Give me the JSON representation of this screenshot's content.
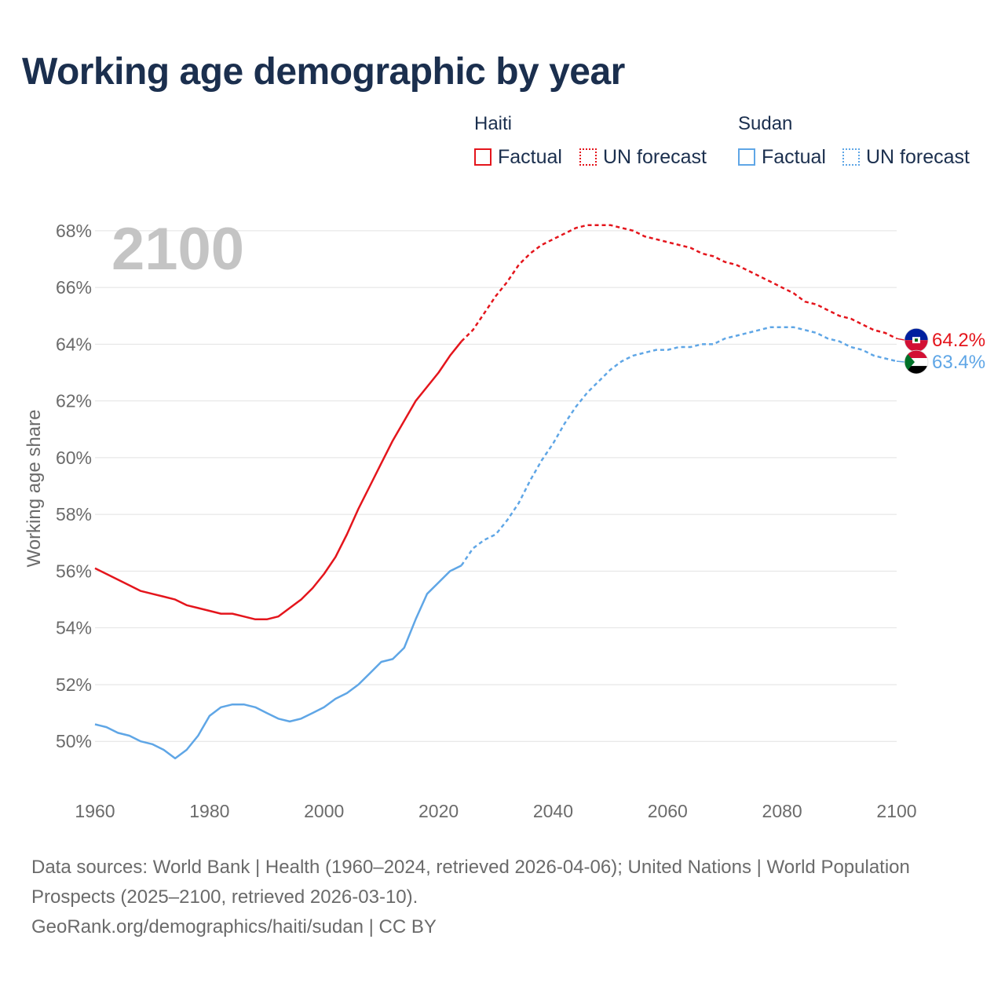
{
  "colors": {
    "haiti": "#e4151c",
    "sudan": "#5fa6e6",
    "title": "#1b2f4e",
    "axis_text": "#6b6b6b",
    "grid": "#e2e2e2",
    "year_watermark": "#c4c4c4"
  },
  "legend": {
    "haiti": {
      "title": "Haiti",
      "factual": "Factual",
      "forecast": "UN forecast"
    },
    "sudan": {
      "title": "Sudan",
      "factual": "Factual",
      "forecast": "UN forecast"
    }
  },
  "footer": {
    "sources": "Data sources: World Bank | Health (1960–2024, retrieved 2026-04-06); United Nations | World Population Prospects (2025–2100, retrieved 2026-03-10).",
    "credit": "GeoRank.org/demographics/haiti/sudan | CC BY"
  },
  "chart_data": {
    "type": "line",
    "title": "Working age demographic by year",
    "watermark_year": "2100",
    "xlabel": "",
    "ylabel": "Working age share",
    "xlim": [
      1960,
      2100
    ],
    "ylim": [
      48.4,
      68.8
    ],
    "x_ticks": [
      {
        "value": 1960,
        "label": "1960"
      },
      {
        "value": 1980,
        "label": "1980"
      },
      {
        "value": 2000,
        "label": "2000"
      },
      {
        "value": 2020,
        "label": "2020"
      },
      {
        "value": 2040,
        "label": "2040"
      },
      {
        "value": 2060,
        "label": "2060"
      },
      {
        "value": 2080,
        "label": "2080"
      },
      {
        "value": 2100,
        "label": "2100"
      }
    ],
    "y_ticks": [
      {
        "value": 50,
        "label": "50%"
      },
      {
        "value": 52,
        "label": "52%"
      },
      {
        "value": 54,
        "label": "54%"
      },
      {
        "value": 56,
        "label": "56%"
      },
      {
        "value": 58,
        "label": "58%"
      },
      {
        "value": 60,
        "label": "60%"
      },
      {
        "value": 62,
        "label": "62%"
      },
      {
        "value": 64,
        "label": "64%"
      },
      {
        "value": 66,
        "label": "66%"
      },
      {
        "value": 68,
        "label": "68%"
      }
    ],
    "grid": true,
    "legend_position": "top-right",
    "series": [
      {
        "name": "Haiti",
        "color_key": "haiti",
        "flag": "haiti",
        "end_label": "64.2%",
        "factual": {
          "x": [
            1960,
            1962,
            1964,
            1966,
            1968,
            1970,
            1972,
            1974,
            1976,
            1978,
            1980,
            1982,
            1984,
            1986,
            1988,
            1990,
            1992,
            1994,
            1996,
            1998,
            2000,
            2002,
            2004,
            2006,
            2008,
            2010,
            2012,
            2014,
            2016,
            2018,
            2020,
            2022,
            2024
          ],
          "y": [
            56.1,
            55.9,
            55.7,
            55.5,
            55.3,
            55.2,
            55.1,
            55.0,
            54.8,
            54.7,
            54.6,
            54.5,
            54.5,
            54.4,
            54.3,
            54.3,
            54.4,
            54.7,
            55.0,
            55.4,
            55.9,
            56.5,
            57.3,
            58.2,
            59.0,
            59.8,
            60.6,
            61.3,
            62.0,
            62.5,
            63.0,
            63.6,
            64.1
          ]
        },
        "forecast": {
          "x": [
            2024,
            2026,
            2028,
            2030,
            2032,
            2034,
            2036,
            2038,
            2040,
            2042,
            2044,
            2046,
            2048,
            2050,
            2052,
            2054,
            2056,
            2058,
            2060,
            2062,
            2064,
            2066,
            2068,
            2070,
            2072,
            2074,
            2076,
            2078,
            2080,
            2082,
            2084,
            2086,
            2088,
            2090,
            2092,
            2094,
            2096,
            2098,
            2100
          ],
          "y": [
            64.1,
            64.5,
            65.1,
            65.7,
            66.2,
            66.8,
            67.2,
            67.5,
            67.7,
            67.9,
            68.1,
            68.2,
            68.2,
            68.2,
            68.1,
            68.0,
            67.8,
            67.7,
            67.6,
            67.5,
            67.4,
            67.2,
            67.1,
            66.9,
            66.8,
            66.6,
            66.4,
            66.2,
            66.0,
            65.8,
            65.5,
            65.4,
            65.2,
            65.0,
            64.9,
            64.7,
            64.5,
            64.4,
            64.2
          ]
        }
      },
      {
        "name": "Sudan",
        "color_key": "sudan",
        "flag": "sudan",
        "end_label": "63.4%",
        "factual": {
          "x": [
            1960,
            1962,
            1964,
            1966,
            1968,
            1970,
            1972,
            1974,
            1976,
            1978,
            1980,
            1982,
            1984,
            1986,
            1988,
            1990,
            1992,
            1994,
            1996,
            1998,
            2000,
            2002,
            2004,
            2006,
            2008,
            2010,
            2012,
            2014,
            2016,
            2018,
            2020,
            2022,
            2024
          ],
          "y": [
            50.6,
            50.5,
            50.3,
            50.2,
            50.0,
            49.9,
            49.7,
            49.4,
            49.7,
            50.2,
            50.9,
            51.2,
            51.3,
            51.3,
            51.2,
            51.0,
            50.8,
            50.7,
            50.8,
            51.0,
            51.2,
            51.5,
            51.7,
            52.0,
            52.4,
            52.8,
            52.9,
            53.3,
            54.3,
            55.2,
            55.6,
            56.0,
            56.2
          ]
        },
        "forecast": {
          "x": [
            2024,
            2026,
            2028,
            2030,
            2032,
            2034,
            2036,
            2038,
            2040,
            2042,
            2044,
            2046,
            2048,
            2050,
            2052,
            2054,
            2056,
            2058,
            2060,
            2062,
            2064,
            2066,
            2068,
            2070,
            2072,
            2074,
            2076,
            2078,
            2080,
            2082,
            2084,
            2086,
            2088,
            2090,
            2092,
            2094,
            2096,
            2098,
            2100
          ],
          "y": [
            56.2,
            56.8,
            57.1,
            57.3,
            57.8,
            58.4,
            59.2,
            59.9,
            60.5,
            61.2,
            61.8,
            62.3,
            62.7,
            63.1,
            63.4,
            63.6,
            63.7,
            63.8,
            63.8,
            63.9,
            63.9,
            64.0,
            64.0,
            64.2,
            64.3,
            64.4,
            64.5,
            64.6,
            64.6,
            64.6,
            64.5,
            64.4,
            64.2,
            64.1,
            63.9,
            63.8,
            63.6,
            63.5,
            63.4
          ]
        }
      }
    ]
  }
}
